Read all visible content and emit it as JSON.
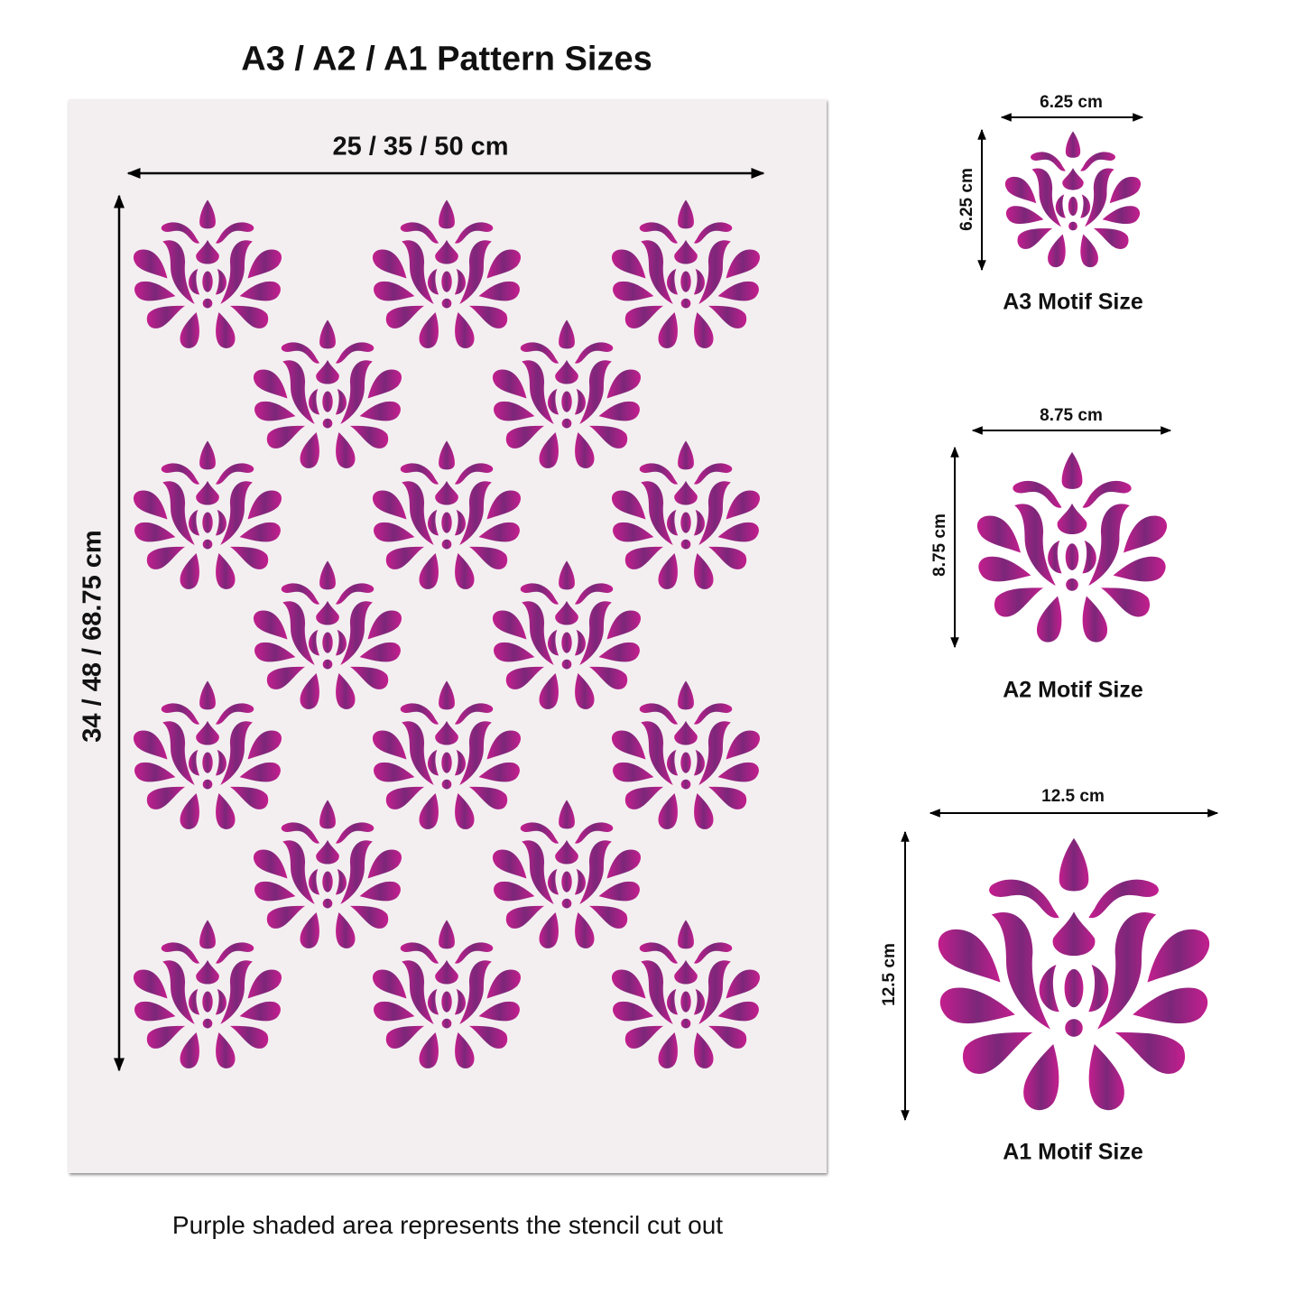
{
  "title": "A3 / A2 / A1 Pattern Sizes",
  "pattern": {
    "width_label": "25 / 35 / 50 cm",
    "height_label": "34 / 48 / 68.75 cm",
    "motif_count": 18
  },
  "motifs": [
    {
      "size": "6.25 cm",
      "label": "A3 Motif Size"
    },
    {
      "size": "8.75 cm",
      "label": "A2 Motif Size"
    },
    {
      "size": "12.5 cm",
      "label": "A1 Motif Size"
    }
  ],
  "caption": "Purple shaded area represents the stencil cut out",
  "colors": {
    "magenta": "#c41e8e",
    "purple": "#7b2779",
    "sheet": "#f3eff0"
  }
}
